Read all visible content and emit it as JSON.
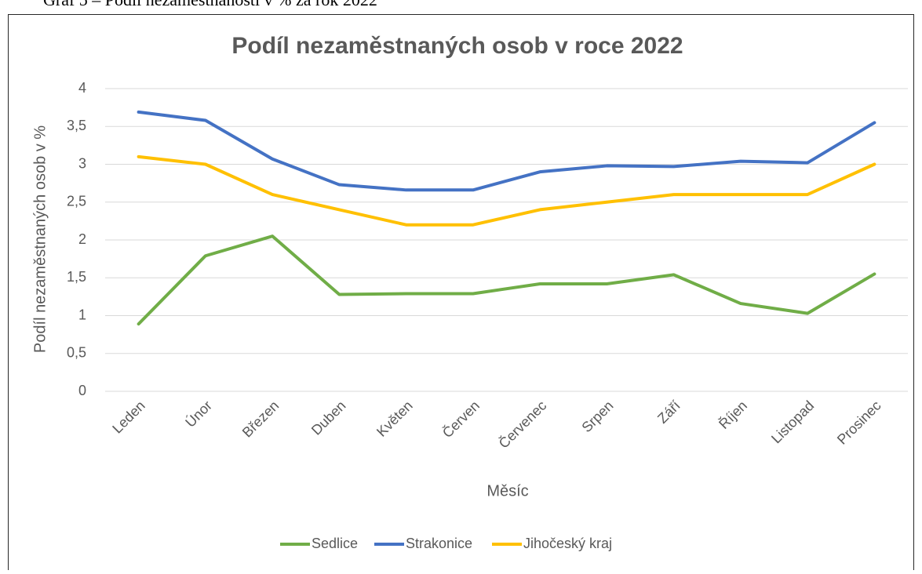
{
  "caption": "Graf 5 – Podíl nezaměstnanosti v % za rok 2022",
  "chart_data": {
    "type": "line",
    "title": "Podíl nezaměstnaných osob v roce 2022",
    "x_label": "Měsíc",
    "y_label": "Podíl nezaměstnaných osob v %",
    "categories": [
      "Leden",
      "Únor",
      "Březen",
      "Duben",
      "Květen",
      "Červen",
      "Červenec",
      "Srpen",
      "Září",
      "Říjen",
      "Listopad",
      "Prosinec"
    ],
    "series": [
      {
        "name": "Sedlice",
        "color": "#70ad47",
        "values": [
          0.89,
          1.79,
          2.05,
          1.28,
          1.29,
          1.29,
          1.42,
          1.42,
          1.54,
          1.16,
          1.03,
          1.55
        ]
      },
      {
        "name": "Strakonice",
        "color": "#4472c4",
        "values": [
          3.69,
          3.58,
          3.07,
          2.73,
          2.66,
          2.66,
          2.9,
          2.98,
          2.97,
          3.04,
          3.02,
          3.55
        ]
      },
      {
        "name": "Jihočeský kraj",
        "color": "#ffc000",
        "values": [
          3.1,
          3.0,
          2.6,
          2.4,
          2.2,
          2.2,
          2.4,
          2.5,
          2.6,
          2.6,
          2.6,
          3.0
        ]
      }
    ],
    "ylim": [
      0,
      4
    ],
    "yticks": [
      0,
      {
        "value": 0.5,
        "label": "0,5"
      },
      1,
      {
        "value": 1.5,
        "label": "1,5"
      },
      2,
      {
        "value": 2.5,
        "label": "2,5"
      },
      3,
      {
        "value": 3.5,
        "label": "3,5"
      },
      4
    ],
    "grid": true,
    "legend": "bottom"
  }
}
